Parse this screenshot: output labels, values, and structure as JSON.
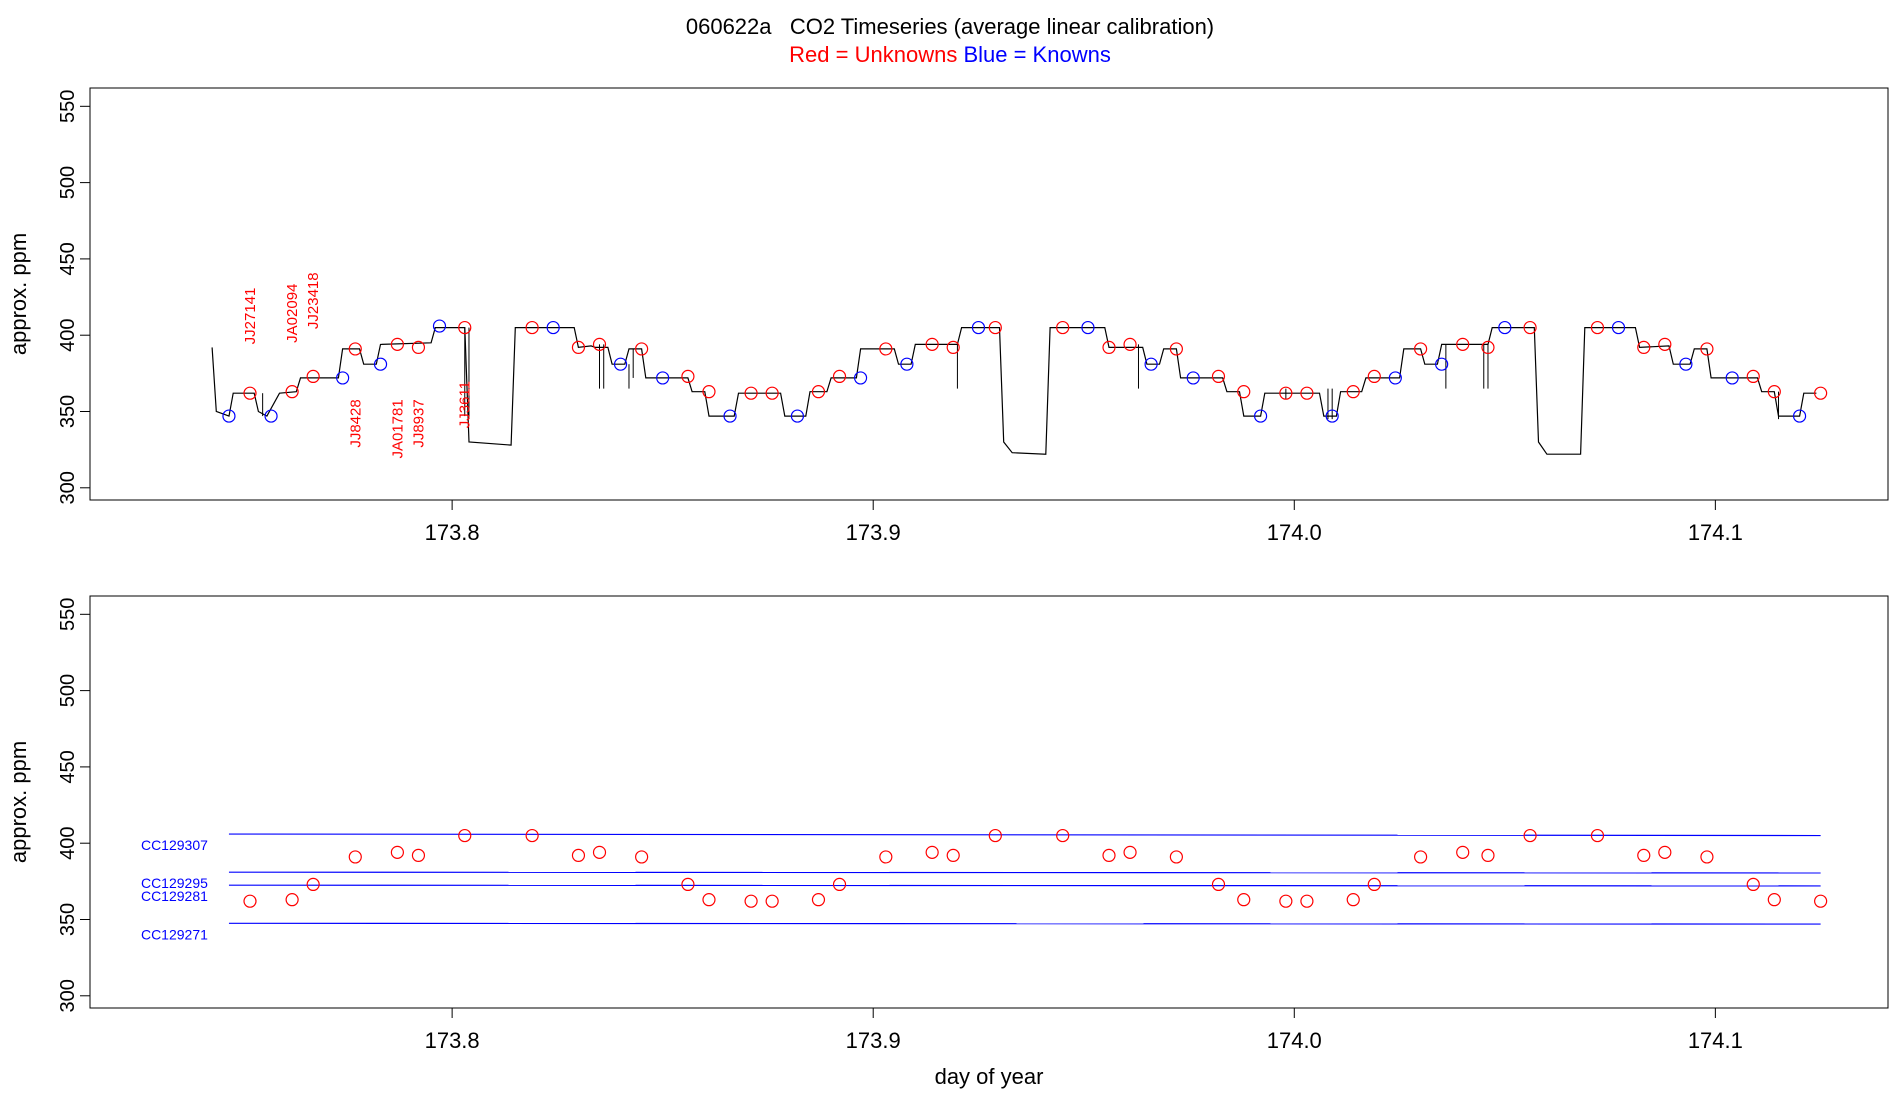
{
  "header": {
    "title": "060622a   CO2 Timeseries (average linear calibration)",
    "legend_red": "Red = Unknowns",
    "legend_blue": "Blue = Knowns"
  },
  "colors": {
    "unknown": "#ff0000",
    "known": "#0000ff",
    "trace": "#000000"
  },
  "chart_data": [
    {
      "type": "line",
      "ylabel": "approx. ppm",
      "xlabel": "",
      "xlim": [
        173.714,
        174.141
      ],
      "ylim": [
        292,
        562
      ],
      "xticks": [
        "173.8",
        "173.9",
        "174.0",
        "174.1"
      ],
      "yticks": [
        "300",
        "350",
        "400",
        "450",
        "500",
        "550"
      ],
      "trace": [
        [
          173.743,
          392
        ],
        [
          173.744,
          350
        ],
        [
          173.747,
          347
        ],
        [
          173.748,
          362
        ],
        [
          173.753,
          362
        ],
        [
          173.754,
          350
        ],
        [
          173.756,
          347
        ],
        [
          173.759,
          362
        ],
        [
          173.763,
          363
        ],
        [
          173.764,
          372
        ],
        [
          173.773,
          372
        ],
        [
          173.774,
          391
        ],
        [
          173.778,
          391
        ],
        [
          173.779,
          381
        ],
        [
          173.782,
          381
        ],
        [
          173.783,
          394
        ],
        [
          173.795,
          395
        ],
        [
          173.796,
          405
        ],
        [
          173.803,
          405
        ],
        [
          173.804,
          330
        ],
        [
          173.814,
          328
        ],
        [
          173.815,
          405
        ],
        [
          173.829,
          405
        ],
        [
          173.83,
          392
        ],
        [
          173.833,
          393
        ],
        [
          173.834,
          392
        ],
        [
          173.837,
          392
        ],
        [
          173.838,
          381
        ],
        [
          173.841,
          381
        ],
        [
          173.842,
          391
        ],
        [
          173.845,
          391
        ],
        [
          173.846,
          372
        ],
        [
          173.856,
          372
        ],
        [
          173.857,
          363
        ],
        [
          173.86,
          363
        ],
        [
          173.861,
          347
        ],
        [
          173.867,
          347
        ],
        [
          173.868,
          362
        ],
        [
          173.878,
          362
        ],
        [
          173.879,
          347
        ],
        [
          173.884,
          347
        ],
        [
          173.885,
          363
        ],
        [
          173.889,
          363
        ],
        [
          173.89,
          372
        ],
        [
          173.896,
          372
        ],
        [
          173.897,
          391
        ],
        [
          173.905,
          391
        ],
        [
          173.906,
          381
        ],
        [
          173.909,
          381
        ],
        [
          173.91,
          394
        ],
        [
          173.92,
          394
        ],
        [
          173.921,
          405
        ],
        [
          173.93,
          405
        ],
        [
          173.931,
          330
        ],
        [
          173.933,
          323
        ],
        [
          173.941,
          322
        ],
        [
          173.942,
          405
        ],
        [
          173.955,
          405
        ],
        [
          173.956,
          392
        ],
        [
          173.964,
          392
        ],
        [
          173.965,
          381
        ],
        [
          173.968,
          381
        ],
        [
          173.969,
          391
        ],
        [
          173.972,
          391
        ],
        [
          173.973,
          372
        ],
        [
          173.983,
          372
        ],
        [
          173.984,
          363
        ],
        [
          173.987,
          363
        ],
        [
          173.988,
          347
        ],
        [
          173.992,
          347
        ],
        [
          173.993,
          362
        ],
        [
          174.006,
          362
        ],
        [
          174.007,
          347
        ],
        [
          174.01,
          347
        ],
        [
          174.011,
          363
        ],
        [
          174.016,
          363
        ],
        [
          174.017,
          372
        ],
        [
          174.025,
          372
        ],
        [
          174.026,
          391
        ],
        [
          174.03,
          391
        ],
        [
          174.031,
          381
        ],
        [
          174.034,
          381
        ],
        [
          174.035,
          394
        ],
        [
          174.046,
          394
        ],
        [
          174.047,
          405
        ],
        [
          174.057,
          405
        ],
        [
          174.058,
          330
        ],
        [
          174.06,
          322
        ],
        [
          174.068,
          322
        ],
        [
          174.069,
          405
        ],
        [
          174.081,
          405
        ],
        [
          174.082,
          392
        ],
        [
          174.089,
          393
        ],
        [
          174.09,
          381
        ],
        [
          174.094,
          381
        ],
        [
          174.095,
          391
        ],
        [
          174.098,
          391
        ],
        [
          174.099,
          372
        ],
        [
          174.11,
          372
        ],
        [
          174.111,
          363
        ],
        [
          174.114,
          363
        ],
        [
          174.115,
          347
        ],
        [
          174.12,
          347
        ],
        [
          174.121,
          362
        ],
        [
          174.124,
          362
        ]
      ],
      "knowns": [
        [
          173.747,
          347
        ],
        [
          173.757,
          347
        ],
        [
          173.774,
          372
        ],
        [
          173.783,
          381
        ],
        [
          173.797,
          406
        ],
        [
          173.824,
          405
        ],
        [
          173.84,
          381
        ],
        [
          173.85,
          372
        ],
        [
          173.866,
          347
        ],
        [
          173.882,
          347
        ],
        [
          173.897,
          372
        ],
        [
          173.908,
          381
        ],
        [
          173.925,
          405
        ],
        [
          173.951,
          405
        ],
        [
          173.966,
          381
        ],
        [
          173.976,
          372
        ],
        [
          173.992,
          347
        ],
        [
          174.009,
          347
        ],
        [
          174.024,
          372
        ],
        [
          174.035,
          381
        ],
        [
          174.05,
          405
        ],
        [
          174.077,
          405
        ],
        [
          174.093,
          381
        ],
        [
          174.104,
          372
        ],
        [
          174.12,
          347
        ]
      ],
      "unknowns": [
        [
          173.752,
          362
        ],
        [
          173.762,
          363
        ],
        [
          173.767,
          373
        ],
        [
          173.777,
          391
        ],
        [
          173.787,
          394
        ],
        [
          173.792,
          392
        ],
        [
          173.803,
          405
        ],
        [
          173.819,
          405
        ],
        [
          173.83,
          392
        ],
        [
          173.835,
          394
        ],
        [
          173.845,
          391
        ],
        [
          173.856,
          373
        ],
        [
          173.861,
          363
        ],
        [
          173.871,
          362
        ],
        [
          173.876,
          362
        ],
        [
          173.887,
          363
        ],
        [
          173.892,
          373
        ],
        [
          173.903,
          391
        ],
        [
          173.914,
          394
        ],
        [
          173.919,
          392
        ],
        [
          173.929,
          405
        ],
        [
          173.945,
          405
        ],
        [
          173.956,
          392
        ],
        [
          173.961,
          394
        ],
        [
          173.972,
          391
        ],
        [
          173.982,
          373
        ],
        [
          173.988,
          363
        ],
        [
          173.998,
          362
        ],
        [
          174.003,
          362
        ],
        [
          174.014,
          363
        ],
        [
          174.019,
          373
        ],
        [
          174.03,
          391
        ],
        [
          174.04,
          394
        ],
        [
          174.046,
          392
        ],
        [
          174.056,
          405
        ],
        [
          174.072,
          405
        ],
        [
          174.083,
          392
        ],
        [
          174.088,
          394
        ],
        [
          174.098,
          391
        ],
        [
          174.109,
          373
        ],
        [
          174.114,
          363
        ],
        [
          174.125,
          362
        ]
      ],
      "spikes": [
        [
          173.755,
          347,
          362
        ],
        [
          173.803,
          347,
          405
        ],
        [
          173.804,
          345,
          405
        ],
        [
          173.835,
          365,
          394
        ],
        [
          173.836,
          365,
          394
        ],
        [
          173.842,
          365,
          381
        ],
        [
          173.843,
          372,
          391
        ],
        [
          173.92,
          365,
          394
        ],
        [
          173.963,
          365,
          394
        ],
        [
          173.998,
          358,
          365
        ],
        [
          174.008,
          345,
          365
        ],
        [
          174.009,
          345,
          365
        ],
        [
          174.036,
          365,
          394
        ],
        [
          174.045,
          365,
          394
        ],
        [
          174.046,
          365,
          394
        ],
        [
          174.115,
          345,
          363
        ]
      ],
      "annotations": [
        {
          "text": "JJ27141",
          "x": 173.752,
          "y": 394,
          "pos": "above"
        },
        {
          "text": "JA02094",
          "x": 173.762,
          "y": 395,
          "pos": "above"
        },
        {
          "text": "JJ23418",
          "x": 173.767,
          "y": 404,
          "pos": "above"
        },
        {
          "text": "JJ8428",
          "x": 173.777,
          "y": 358,
          "pos": "below"
        },
        {
          "text": "JA01781",
          "x": 173.787,
          "y": 358,
          "pos": "below"
        },
        {
          "text": "JJ8937",
          "x": 173.792,
          "y": 358,
          "pos": "below"
        },
        {
          "text": "JJ3611",
          "x": 173.803,
          "y": 370,
          "pos": "below"
        }
      ]
    },
    {
      "type": "scatter",
      "ylabel": "approx. ppm",
      "xlabel": "day of year",
      "xlim": [
        173.714,
        174.141
      ],
      "ylim": [
        292,
        562
      ],
      "xticks": [
        "173.8",
        "173.9",
        "174.0",
        "174.1"
      ],
      "yticks": [
        "300",
        "350",
        "400",
        "450",
        "500",
        "550"
      ],
      "reference_lines": [
        {
          "name": "CC129307",
          "y0": 406.0,
          "y1": 405.0
        },
        {
          "name": "CC129295",
          "y0": 381.0,
          "y1": 380.5
        },
        {
          "name": "CC129281",
          "y0": 372.5,
          "y1": 372.0
        },
        {
          "name": "CC129271",
          "y0": 347.5,
          "y1": 347.0
        }
      ],
      "ref_x": [
        173.747,
        174.125
      ],
      "unknowns": [
        [
          173.752,
          362
        ],
        [
          173.762,
          363
        ],
        [
          173.767,
          373
        ],
        [
          173.777,
          391
        ],
        [
          173.787,
          394
        ],
        [
          173.792,
          392
        ],
        [
          173.803,
          405
        ],
        [
          173.819,
          405
        ],
        [
          173.83,
          392
        ],
        [
          173.835,
          394
        ],
        [
          173.845,
          391
        ],
        [
          173.856,
          373
        ],
        [
          173.861,
          363
        ],
        [
          173.871,
          362
        ],
        [
          173.876,
          362
        ],
        [
          173.887,
          363
        ],
        [
          173.892,
          373
        ],
        [
          173.903,
          391
        ],
        [
          173.914,
          394
        ],
        [
          173.919,
          392
        ],
        [
          173.929,
          405
        ],
        [
          173.945,
          405
        ],
        [
          173.956,
          392
        ],
        [
          173.961,
          394
        ],
        [
          173.972,
          391
        ],
        [
          173.982,
          373
        ],
        [
          173.988,
          363
        ],
        [
          173.998,
          362
        ],
        [
          174.003,
          362
        ],
        [
          174.014,
          363
        ],
        [
          174.019,
          373
        ],
        [
          174.03,
          391
        ],
        [
          174.04,
          394
        ],
        [
          174.046,
          392
        ],
        [
          174.056,
          405
        ],
        [
          174.072,
          405
        ],
        [
          174.083,
          392
        ],
        [
          174.088,
          394
        ],
        [
          174.098,
          391
        ],
        [
          174.109,
          373
        ],
        [
          174.114,
          363
        ],
        [
          174.125,
          362
        ]
      ]
    }
  ]
}
